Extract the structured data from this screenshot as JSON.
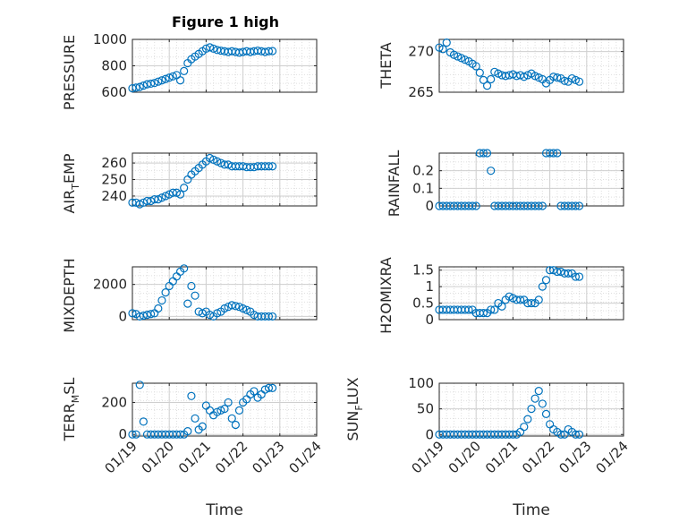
{
  "figure": {
    "title": "Figure 1 high"
  },
  "chart_data": [
    {
      "type": "scatter",
      "ylabel": "PRESSURE",
      "ylim": [
        600,
        1000
      ],
      "yticks": [
        600,
        800,
        1000
      ],
      "grid": true,
      "x": [
        0,
        0.1,
        0.2,
        0.3,
        0.4,
        0.5,
        0.6,
        0.7,
        0.8,
        0.9,
        1.0,
        1.1,
        1.2,
        1.3,
        1.4,
        1.5,
        1.6,
        1.7,
        1.8,
        1.9,
        2.0,
        2.1,
        2.2,
        2.3,
        2.4,
        2.5,
        2.6,
        2.7,
        2.8,
        2.9,
        3.0,
        3.1,
        3.2,
        3.3,
        3.4,
        3.5,
        3.6,
        3.7,
        3.8
      ],
      "y": [
        630,
        635,
        640,
        650,
        660,
        665,
        670,
        680,
        690,
        700,
        710,
        720,
        730,
        690,
        760,
        820,
        850,
        870,
        890,
        910,
        930,
        940,
        930,
        920,
        915,
        910,
        905,
        910,
        905,
        900,
        905,
        910,
        905,
        910,
        915,
        910,
        905,
        910,
        912
      ]
    },
    {
      "type": "scatter",
      "ylabel": "THETA",
      "ylim": [
        265,
        271.5
      ],
      "yticks": [
        265,
        270
      ],
      "grid": true,
      "x": [
        0,
        0.1,
        0.2,
        0.3,
        0.4,
        0.5,
        0.6,
        0.7,
        0.8,
        0.9,
        1.0,
        1.1,
        1.2,
        1.3,
        1.4,
        1.5,
        1.6,
        1.7,
        1.8,
        1.9,
        2.0,
        2.1,
        2.2,
        2.3,
        2.4,
        2.5,
        2.6,
        2.7,
        2.8,
        2.9,
        3.0,
        3.1,
        3.2,
        3.3,
        3.4,
        3.5,
        3.6,
        3.7,
        3.8
      ],
      "y": [
        270.5,
        270.3,
        271.1,
        269.9,
        269.6,
        269.4,
        269.2,
        269.0,
        268.8,
        268.5,
        268.2,
        267.4,
        266.5,
        265.8,
        266.6,
        267.5,
        267.3,
        267.1,
        267.0,
        267.1,
        267.2,
        267.0,
        267.1,
        266.9,
        267.1,
        267.3,
        267.0,
        266.8,
        266.6,
        266.1,
        266.5,
        266.9,
        266.8,
        266.7,
        266.4,
        266.3,
        266.7,
        266.5,
        266.3
      ]
    },
    {
      "type": "scatter",
      "ylabel": "AIR_TEMP",
      "ylim": [
        234,
        266
      ],
      "yticks": [
        240,
        250,
        260
      ],
      "grid": true,
      "x": [
        0,
        0.1,
        0.2,
        0.3,
        0.4,
        0.5,
        0.6,
        0.7,
        0.8,
        0.9,
        1.0,
        1.1,
        1.2,
        1.3,
        1.4,
        1.5,
        1.6,
        1.7,
        1.8,
        1.9,
        2.0,
        2.1,
        2.2,
        2.3,
        2.4,
        2.5,
        2.6,
        2.7,
        2.8,
        2.9,
        3.0,
        3.1,
        3.2,
        3.3,
        3.4,
        3.5,
        3.6,
        3.7,
        3.8
      ],
      "y": [
        236,
        236,
        235,
        236,
        237,
        237,
        238,
        238,
        239,
        240,
        241,
        242,
        242,
        241,
        245,
        250,
        253,
        255,
        257,
        259,
        261,
        263,
        262,
        261,
        260,
        259,
        259,
        258,
        258,
        258,
        258,
        257.5,
        257.5,
        257.5,
        258,
        258,
        258,
        258,
        258
      ]
    },
    {
      "type": "scatter",
      "ylabel": "RAINFALL",
      "ylim": [
        0,
        0.3
      ],
      "yticks": [
        0,
        0.1,
        0.2
      ],
      "grid": true,
      "x": [
        0,
        0.1,
        0.2,
        0.3,
        0.4,
        0.5,
        0.6,
        0.7,
        0.8,
        0.9,
        1.0,
        1.1,
        1.2,
        1.3,
        1.4,
        1.5,
        1.6,
        1.7,
        1.8,
        1.9,
        2.0,
        2.1,
        2.2,
        2.3,
        2.4,
        2.5,
        2.6,
        2.7,
        2.8,
        2.9,
        3.0,
        3.1,
        3.2,
        3.3,
        3.4,
        3.5,
        3.6,
        3.7,
        3.8
      ],
      "y": [
        0,
        0,
        0,
        0,
        0,
        0,
        0,
        0,
        0,
        0,
        0,
        0.3,
        0.3,
        0.3,
        0.2,
        0,
        0,
        0,
        0,
        0,
        0,
        0,
        0,
        0,
        0,
        0,
        0,
        0,
        0,
        0.3,
        0.3,
        0.3,
        0.3,
        0,
        0,
        0,
        0,
        0,
        0
      ]
    },
    {
      "type": "scatter",
      "ylabel": "MIXDEPTH",
      "ylim": [
        -200,
        3100
      ],
      "yticks": [
        0,
        2000
      ],
      "grid": true,
      "x": [
        0,
        0.1,
        0.2,
        0.3,
        0.4,
        0.5,
        0.6,
        0.7,
        0.8,
        0.9,
        1.0,
        1.1,
        1.2,
        1.3,
        1.4,
        1.5,
        1.6,
        1.7,
        1.8,
        1.9,
        2.0,
        2.1,
        2.2,
        2.3,
        2.4,
        2.5,
        2.6,
        2.7,
        2.8,
        2.9,
        3.0,
        3.1,
        3.2,
        3.3,
        3.4,
        3.5,
        3.6,
        3.7,
        3.8
      ],
      "y": [
        200,
        150,
        0,
        50,
        100,
        150,
        200,
        500,
        1000,
        1500,
        1900,
        2200,
        2500,
        2800,
        3000,
        800,
        1900,
        1300,
        300,
        200,
        300,
        100,
        0,
        200,
        300,
        500,
        600,
        700,
        650,
        600,
        500,
        400,
        300,
        100,
        0,
        0,
        0,
        0,
        0
      ]
    },
    {
      "type": "scatter",
      "ylabel": "H2OMIXRA",
      "ylim": [
        0,
        1.6
      ],
      "yticks": [
        0,
        0.5,
        1,
        1.5
      ],
      "grid": true,
      "x": [
        0,
        0.1,
        0.2,
        0.3,
        0.4,
        0.5,
        0.6,
        0.7,
        0.8,
        0.9,
        1.0,
        1.1,
        1.2,
        1.3,
        1.4,
        1.5,
        1.6,
        1.7,
        1.8,
        1.9,
        2.0,
        2.1,
        2.2,
        2.3,
        2.4,
        2.5,
        2.6,
        2.7,
        2.8,
        2.9,
        3.0,
        3.1,
        3.2,
        3.3,
        3.4,
        3.5,
        3.6,
        3.7,
        3.8
      ],
      "y": [
        0.3,
        0.3,
        0.3,
        0.3,
        0.3,
        0.3,
        0.3,
        0.3,
        0.3,
        0.3,
        0.2,
        0.2,
        0.2,
        0.2,
        0.3,
        0.3,
        0.5,
        0.4,
        0.6,
        0.7,
        0.65,
        0.6,
        0.6,
        0.6,
        0.5,
        0.5,
        0.5,
        0.6,
        1.0,
        1.2,
        1.5,
        1.5,
        1.45,
        1.45,
        1.4,
        1.4,
        1.4,
        1.3,
        1.3
      ]
    },
    {
      "type": "scatter",
      "ylabel": "TERR_MSL",
      "ylim": [
        -10,
        320
      ],
      "yticks": [
        0,
        200
      ],
      "grid": true,
      "x": [
        0,
        0.1,
        0.2,
        0.3,
        0.4,
        0.5,
        0.6,
        0.7,
        0.8,
        0.9,
        1.0,
        1.1,
        1.2,
        1.3,
        1.4,
        1.5,
        1.6,
        1.7,
        1.8,
        1.9,
        2.0,
        2.1,
        2.2,
        2.3,
        2.4,
        2.5,
        2.6,
        2.7,
        2.8,
        2.9,
        3.0,
        3.1,
        3.2,
        3.3,
        3.4,
        3.5,
        3.6,
        3.7,
        3.8
      ],
      "y": [
        0,
        0,
        310,
        80,
        0,
        0,
        0,
        0,
        0,
        0,
        0,
        0,
        0,
        0,
        0,
        20,
        240,
        100,
        30,
        50,
        180,
        150,
        120,
        140,
        150,
        160,
        200,
        100,
        60,
        150,
        200,
        220,
        250,
        270,
        230,
        250,
        280,
        290,
        290
      ]
    },
    {
      "type": "scatter",
      "ylabel": "SUN_FLUX",
      "ylim": [
        -3,
        100
      ],
      "yticks": [
        0,
        50,
        100
      ],
      "grid": true,
      "x": [
        0,
        0.1,
        0.2,
        0.3,
        0.4,
        0.5,
        0.6,
        0.7,
        0.8,
        0.9,
        1.0,
        1.1,
        1.2,
        1.3,
        1.4,
        1.5,
        1.6,
        1.7,
        1.8,
        1.9,
        2.0,
        2.1,
        2.2,
        2.3,
        2.4,
        2.5,
        2.6,
        2.7,
        2.8,
        2.9,
        3.0,
        3.1,
        3.2,
        3.3,
        3.4,
        3.5,
        3.6,
        3.7,
        3.8
      ],
      "y": [
        0,
        0,
        0,
        0,
        0,
        0,
        0,
        0,
        0,
        0,
        0,
        0,
        0,
        0,
        0,
        0,
        0,
        0,
        0,
        0,
        0,
        0,
        5,
        15,
        30,
        50,
        70,
        85,
        60,
        40,
        20,
        10,
        5,
        0,
        0,
        10,
        5,
        0,
        0
      ]
    }
  ],
  "xaxis": {
    "xlim": [
      0,
      5
    ],
    "ticks": [
      0,
      1,
      2,
      3,
      4,
      5
    ],
    "ticklabels": [
      "01/19",
      "01/20",
      "01/21",
      "01/22",
      "01/23",
      "01/24"
    ],
    "label": "Time"
  },
  "colors": {
    "marker": "#0072bd",
    "axis": "#262626",
    "grid": "#dfdfdf"
  }
}
